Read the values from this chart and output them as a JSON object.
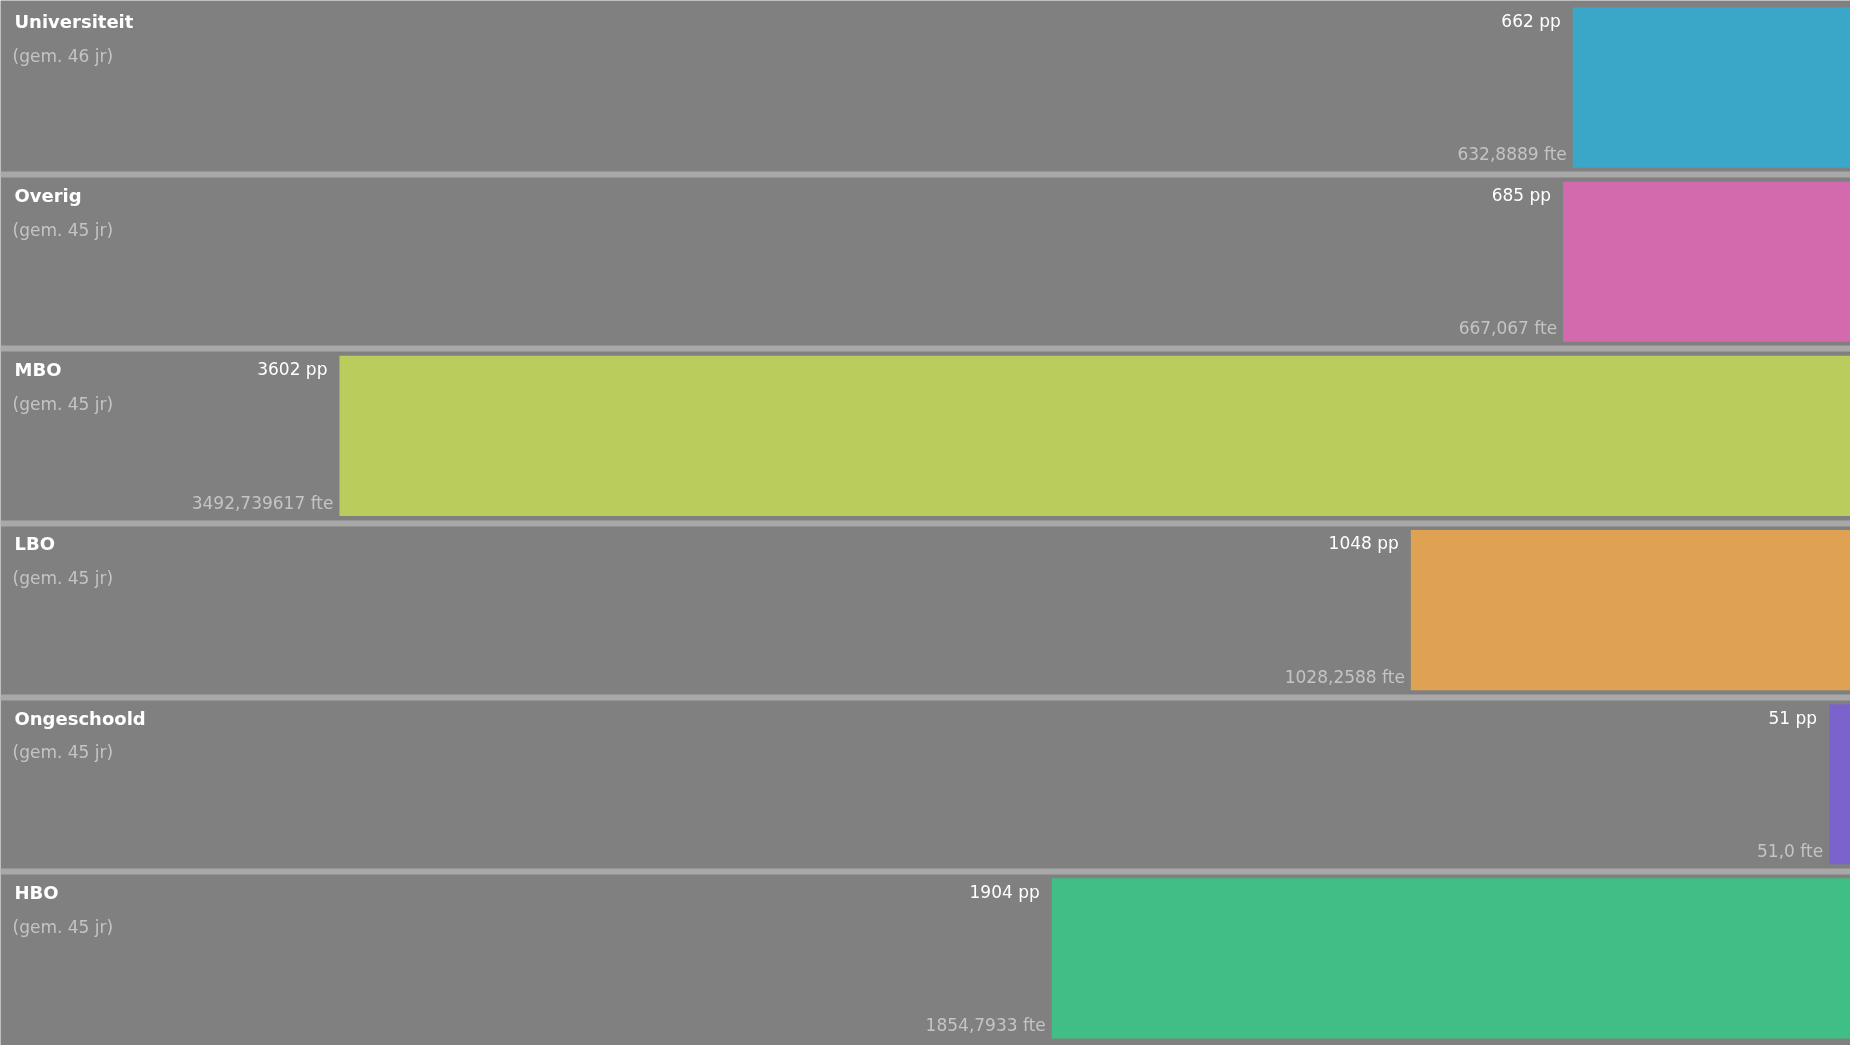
{
  "chart_data": {
    "type": "bar",
    "orientation": "horizontal",
    "categories": [
      "Universiteit\n(gem. 46 jr)",
      "Overig\n(gem. 45 jr)",
      "MBO\n(gem. 45 jr)",
      "LBO\n(gem. 45 jr)",
      "Ongeschoold\n(gem. 45 jr)",
      "HBO\n(gem. 45 jr)"
    ],
    "values": [
      662,
      685,
      3602,
      1048,
      51,
      1904
    ],
    "colors": [
      "#3aa6c8",
      "#d46aae",
      "#b9cc5c",
      "#dfa152",
      "#7a64cc",
      "#3fbf86"
    ],
    "value_labels": [
      "662 pp",
      "685 pp",
      "3602 pp",
      "1048 pp",
      "51 pp",
      "1904 pp"
    ],
    "xlim": [
      4410,
      0
    ],
    "tick_labels": false,
    "annotations": [
      {
        "text": "632,8889 fte",
        "x": 662,
        "y": "Universiteit\n(gem. 46 jr)"
      },
      {
        "text": "667,067 fte",
        "x": 685,
        "y": "Overig\n(gem. 45 jr)"
      },
      {
        "text": "3492,739617 fte",
        "x": 3602,
        "y": "MBO\n(gem. 45 jr)"
      },
      {
        "text": "1028,2588 fte",
        "x": 1048,
        "y": "LBO\n(gem. 45 jr)"
      },
      {
        "text": "51,0 fte",
        "x": 51,
        "y": "Ongeschoold\n(gem. 45 jr)"
      },
      {
        "text": "1854,7933 fte",
        "x": 1904,
        "y": "HBO\n(gem. 45 jr)"
      }
    ]
  }
}
